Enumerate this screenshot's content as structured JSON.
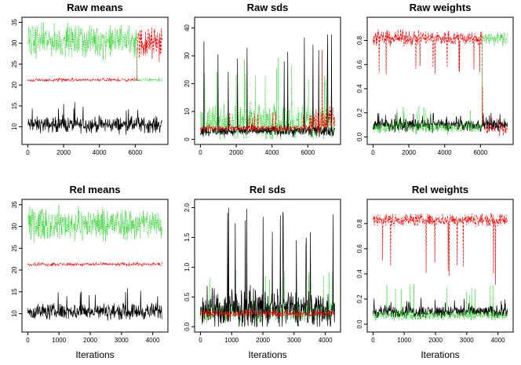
{
  "figure": {
    "layout": "2x3 grid of MCMC trace plots",
    "series_colors": {
      "component_1": "#000000",
      "component_2": "#ff0000",
      "component_3": "#00cc00"
    }
  },
  "chart_data": [
    {
      "type": "line",
      "title": "Raw means",
      "xlabel": "",
      "xlim": [
        0,
        7500
      ],
      "ylim": [
        7,
        35
      ],
      "xticks": [
        0,
        2000,
        4000,
        6000
      ],
      "yticks": [
        10,
        15,
        20,
        25,
        30,
        35
      ],
      "series": [
        {
          "color": "#000000",
          "style": "solid",
          "segments": [
            {
              "from": 0,
              "to": 7500,
              "center": 10.5,
              "spread": 1.5,
              "spike": 16
            }
          ]
        },
        {
          "color": "#ff0000",
          "style": "dashed",
          "segments": [
            {
              "from": 0,
              "to": 6100,
              "center": 21.2,
              "spread": 0.3,
              "spike": 21.8
            },
            {
              "from": 6100,
              "to": 7500,
              "center": 30,
              "spread": 3,
              "spike": 34
            }
          ]
        },
        {
          "color": "#00cc00",
          "style": "dotted",
          "segments": [
            {
              "from": 0,
              "to": 6100,
              "center": 30.5,
              "spread": 3,
              "spike": 34
            },
            {
              "from": 6100,
              "to": 7500,
              "center": 21.2,
              "spread": 0.3,
              "spike": 21.8
            }
          ]
        }
      ]
    },
    {
      "type": "line",
      "title": "Raw sds",
      "xlabel": "",
      "xlim": [
        0,
        7500
      ],
      "ylim": [
        0,
        42
      ],
      "xticks": [
        0,
        2000,
        4000,
        6000
      ],
      "yticks": [
        0,
        10,
        20,
        30,
        40
      ],
      "series": [
        {
          "color": "#00cc00",
          "style": "dotted",
          "segments": [
            {
              "from": 0,
              "to": 7500,
              "center": 6,
              "spread": 5,
              "spike": 30
            }
          ]
        },
        {
          "color": "#000000",
          "style": "solid",
          "segments": [
            {
              "from": 0,
              "to": 7500,
              "center": 3,
              "spread": 1.5,
              "spike": 38
            }
          ]
        },
        {
          "color": "#ff0000",
          "style": "dashed",
          "segments": [
            {
              "from": 0,
              "to": 6100,
              "center": 4,
              "spread": 1,
              "spike": 10
            },
            {
              "from": 6100,
              "to": 7500,
              "center": 7,
              "spread": 4,
              "spike": 40
            }
          ]
        }
      ]
    },
    {
      "type": "line",
      "title": "Raw weights",
      "xlabel": "",
      "xlim": [
        0,
        7500
      ],
      "ylim": [
        -0.02,
        0.95
      ],
      "xticks": [
        0,
        2000,
        4000,
        6000
      ],
      "yticks": [
        0.0,
        0.2,
        0.4,
        0.6,
        0.8
      ],
      "series": [
        {
          "color": "#ff0000",
          "style": "dashed",
          "segments": [
            {
              "from": 0,
              "to": 6100,
              "center": 0.82,
              "spread": 0.05,
              "spike": 0.5
            },
            {
              "from": 6100,
              "to": 7500,
              "center": 0.08,
              "spread": 0.05,
              "spike": 0.45
            }
          ]
        },
        {
          "color": "#000000",
          "style": "solid",
          "segments": [
            {
              "from": 0,
              "to": 7500,
              "center": 0.1,
              "spread": 0.04,
              "spike": 0.2
            }
          ]
        },
        {
          "color": "#00cc00",
          "style": "dotted",
          "segments": [
            {
              "from": 0,
              "to": 6100,
              "center": 0.08,
              "spread": 0.04,
              "spike": 0.28
            },
            {
              "from": 6100,
              "to": 7500,
              "center": 0.82,
              "spread": 0.04,
              "spike": 0.72
            }
          ]
        }
      ]
    },
    {
      "type": "line",
      "title": "Rel means",
      "xlabel": "Iterations",
      "xlim": [
        0,
        4300
      ],
      "ylim": [
        7,
        35
      ],
      "xticks": [
        0,
        1000,
        2000,
        3000,
        4000
      ],
      "yticks": [
        10,
        15,
        20,
        25,
        30,
        35
      ],
      "series": [
        {
          "color": "#000000",
          "style": "solid",
          "segments": [
            {
              "from": 0,
              "to": 4300,
              "center": 10.5,
              "spread": 1.5,
              "spike": 16
            }
          ]
        },
        {
          "color": "#ff0000",
          "style": "dashed",
          "segments": [
            {
              "from": 0,
              "to": 4300,
              "center": 21.3,
              "spread": 0.3,
              "spike": 21.9
            }
          ]
        },
        {
          "color": "#00cc00",
          "style": "dotted",
          "segments": [
            {
              "from": 0,
              "to": 4300,
              "center": 30.5,
              "spread": 3,
              "spike": 34
            }
          ]
        }
      ]
    },
    {
      "type": "line",
      "title": "Rel sds",
      "xlabel": "Iterations",
      "xlim": [
        0,
        4300
      ],
      "ylim": [
        0,
        2.05
      ],
      "xticks": [
        0,
        1000,
        2000,
        3000,
        4000
      ],
      "yticks": [
        0.0,
        0.5,
        1.0,
        1.5,
        2.0
      ],
      "series": [
        {
          "color": "#00cc00",
          "style": "dotted",
          "segments": [
            {
              "from": 0,
              "to": 4300,
              "center": 0.25,
              "spread": 0.15,
              "spike": 1.0
            }
          ]
        },
        {
          "color": "#000000",
          "style": "solid",
          "segments": [
            {
              "from": 0,
              "to": 4300,
              "center": 0.3,
              "spread": 0.25,
              "spike": 2.0
            }
          ]
        },
        {
          "color": "#ff0000",
          "style": "dashed",
          "segments": [
            {
              "from": 0,
              "to": 4300,
              "center": 0.22,
              "spread": 0.05,
              "spike": 0.3
            }
          ]
        }
      ]
    },
    {
      "type": "line",
      "title": "Rel weights",
      "xlabel": "Iterations",
      "xlim": [
        0,
        4300
      ],
      "ylim": [
        -0.02,
        0.95
      ],
      "xticks": [
        0,
        1000,
        2000,
        3000,
        4000
      ],
      "yticks": [
        0.0,
        0.2,
        0.4,
        0.6,
        0.8
      ],
      "series": [
        {
          "color": "#ff0000",
          "style": "dashed",
          "segments": [
            {
              "from": 0,
              "to": 4300,
              "center": 0.83,
              "spread": 0.04,
              "spike": 0.3
            }
          ]
        },
        {
          "color": "#000000",
          "style": "solid",
          "segments": [
            {
              "from": 0,
              "to": 4300,
              "center": 0.1,
              "spread": 0.04,
              "spike": 0.22
            }
          ]
        },
        {
          "color": "#00cc00",
          "style": "dotted",
          "segments": [
            {
              "from": 0,
              "to": 4300,
              "center": 0.07,
              "spread": 0.03,
              "spike": 0.32
            }
          ]
        }
      ]
    }
  ]
}
